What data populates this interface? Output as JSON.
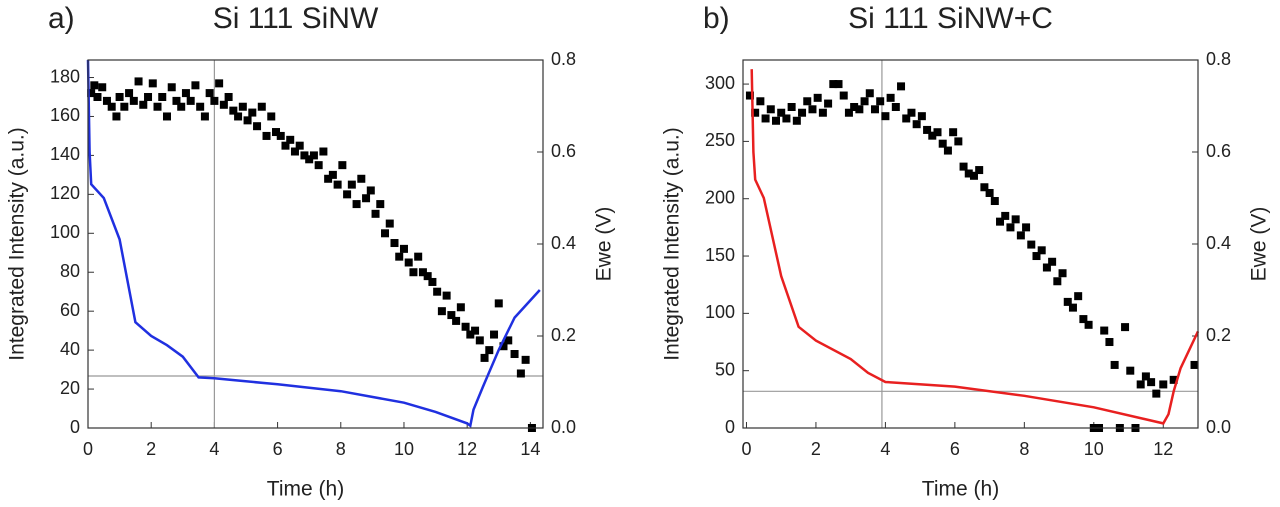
{
  "chart_data": [
    {
      "type": "combo",
      "panel_label": "a)",
      "title": "Si 111 SiNW",
      "xlabel": "Time (h)",
      "ylabel": "Integrated Intensity (a.u.)",
      "y2label": "Ewe (V)",
      "xlim": [
        0,
        14.4
      ],
      "ylim": [
        0,
        189
      ],
      "y2lim": [
        0,
        0.8
      ],
      "xticks": [
        0,
        2,
        4,
        6,
        8,
        10,
        12,
        14
      ],
      "yticks": [
        0,
        20,
        40,
        60,
        80,
        100,
        120,
        140,
        160,
        180
      ],
      "y2ticks": [
        {
          "value": 0,
          "label": "0.0"
        },
        0.2,
        0.4,
        0.6,
        0.8
      ],
      "vline": 4,
      "hline": 26.7,
      "series": [
        {
          "type": "scatter",
          "color": "#000000",
          "x": [
            0.1,
            0.2,
            0.3,
            0.45,
            0.6,
            0.75,
            0.9,
            1.0,
            1.15,
            1.3,
            1.45,
            1.6,
            1.75,
            1.9,
            2.05,
            2.2,
            2.35,
            2.5,
            2.65,
            2.8,
            2.95,
            3.1,
            3.25,
            3.4,
            3.55,
            3.7,
            3.85,
            4.0,
            4.15,
            4.3,
            4.45,
            4.6,
            4.75,
            4.9,
            5.05,
            5.2,
            5.35,
            5.5,
            5.65,
            5.8,
            5.95,
            6.1,
            6.25,
            6.4,
            6.55,
            6.7,
            6.85,
            7.0,
            7.15,
            7.3,
            7.45,
            7.6,
            7.75,
            7.9,
            8.05,
            8.2,
            8.35,
            8.5,
            8.65,
            8.8,
            8.95,
            9.1,
            9.25,
            9.4,
            9.55,
            9.7,
            9.85,
            10.0,
            10.15,
            10.3,
            10.45,
            10.6,
            10.75,
            10.9,
            11.05,
            11.2,
            11.35,
            11.5,
            11.65,
            11.8,
            11.95,
            12.1,
            12.25,
            12.4,
            12.55,
            12.7,
            12.85,
            13.0,
            13.15,
            13.3,
            13.5,
            13.7,
            13.85,
            14.05
          ],
          "values": [
            172,
            176,
            170,
            175,
            168,
            165,
            160,
            170,
            165,
            172,
            168,
            178,
            166,
            170,
            177,
            165,
            170,
            160,
            175,
            168,
            165,
            172,
            168,
            176,
            165,
            160,
            172,
            168,
            177,
            166,
            170,
            163,
            160,
            165,
            158,
            162,
            155,
            165,
            150,
            160,
            152,
            150,
            145,
            148,
            142,
            145,
            140,
            138,
            140,
            135,
            142,
            128,
            130,
            125,
            135,
            120,
            125,
            115,
            128,
            118,
            122,
            110,
            115,
            100,
            105,
            95,
            88,
            92,
            85,
            80,
            88,
            80,
            78,
            75,
            70,
            60,
            68,
            58,
            55,
            62,
            52,
            48,
            50,
            45,
            36,
            40,
            48,
            64,
            42,
            45,
            38,
            28,
            35,
            0
          ]
        },
        {
          "type": "line",
          "color": "#2030e0",
          "axis": "y2",
          "x": [
            0,
            0.05,
            0.1,
            0.5,
            1,
            1.5,
            2,
            2.5,
            3,
            3.5,
            4,
            6,
            8,
            10,
            11,
            12,
            12.1,
            12.2,
            12.5,
            13,
            13.5,
            14.3
          ],
          "values": [
            0.8,
            0.6,
            0.53,
            0.5,
            0.41,
            0.23,
            0.2,
            0.18,
            0.155,
            0.11,
            0.108,
            0.095,
            0.08,
            0.055,
            0.035,
            0.01,
            0.005,
            0.04,
            0.09,
            0.17,
            0.24,
            0.3
          ]
        }
      ]
    },
    {
      "type": "combo",
      "panel_label": "b)",
      "title": "Si 111 SiNW+C",
      "xlabel": "Time (h)",
      "ylabel": "Integrated Intensity (a.u.)",
      "y2label": "Ewe (V)",
      "xlim": [
        -0.1,
        13
      ],
      "ylim": [
        0,
        321
      ],
      "y2lim": [
        0,
        0.8
      ],
      "xticks": [
        0,
        2,
        4,
        6,
        8,
        10,
        12
      ],
      "yticks": [
        0,
        50,
        100,
        150,
        200,
        250,
        300
      ],
      "y2ticks": [
        {
          "value": 0,
          "label": "0.0"
        },
        0.2,
        0.4,
        0.6,
        0.8
      ],
      "vline": 3.9,
      "hline": 32,
      "series": [
        {
          "type": "scatter",
          "color": "#000000",
          "x": [
            0.1,
            0.25,
            0.4,
            0.55,
            0.7,
            0.85,
            1.0,
            1.15,
            1.3,
            1.45,
            1.6,
            1.75,
            1.9,
            2.05,
            2.2,
            2.35,
            2.5,
            2.65,
            2.8,
            2.95,
            3.1,
            3.25,
            3.4,
            3.55,
            3.7,
            3.85,
            4.0,
            4.15,
            4.3,
            4.45,
            4.6,
            4.75,
            4.9,
            5.05,
            5.2,
            5.35,
            5.5,
            5.65,
            5.8,
            5.95,
            6.1,
            6.25,
            6.4,
            6.55,
            6.7,
            6.85,
            7.0,
            7.15,
            7.3,
            7.45,
            7.6,
            7.75,
            7.9,
            8.05,
            8.2,
            8.35,
            8.5,
            8.65,
            8.8,
            8.95,
            9.1,
            9.25,
            9.4,
            9.55,
            9.7,
            9.85,
            10.0,
            10.15,
            10.3,
            10.45,
            10.6,
            10.75,
            10.9,
            11.05,
            11.2,
            11.35,
            11.5,
            11.65,
            11.8,
            12.0,
            12.3,
            12.9
          ],
          "values": [
            290,
            275,
            285,
            270,
            278,
            268,
            275,
            270,
            280,
            268,
            275,
            285,
            278,
            288,
            275,
            283,
            300,
            300,
            290,
            275,
            280,
            278,
            285,
            292,
            278,
            285,
            272,
            288,
            280,
            298,
            270,
            275,
            265,
            272,
            260,
            255,
            258,
            248,
            242,
            258,
            250,
            228,
            222,
            220,
            225,
            210,
            205,
            198,
            180,
            185,
            175,
            182,
            168,
            175,
            160,
            150,
            155,
            140,
            145,
            128,
            135,
            110,
            105,
            115,
            95,
            90,
            0,
            0,
            85,
            75,
            55,
            0,
            88,
            50,
            0,
            38,
            45,
            40,
            30,
            38,
            42,
            55
          ]
        },
        {
          "type": "line",
          "color": "#e82020",
          "axis": "y2",
          "x": [
            0.15,
            0.2,
            0.25,
            0.5,
            1,
            1.5,
            2,
            3,
            3.5,
            4,
            6,
            8,
            10,
            12,
            12.15,
            12.3,
            12.5,
            13
          ],
          "values": [
            0.78,
            0.6,
            0.54,
            0.5,
            0.33,
            0.22,
            0.19,
            0.15,
            0.12,
            0.1,
            0.09,
            0.07,
            0.045,
            0.01,
            0.03,
            0.08,
            0.13,
            0.21
          ]
        }
      ]
    }
  ]
}
